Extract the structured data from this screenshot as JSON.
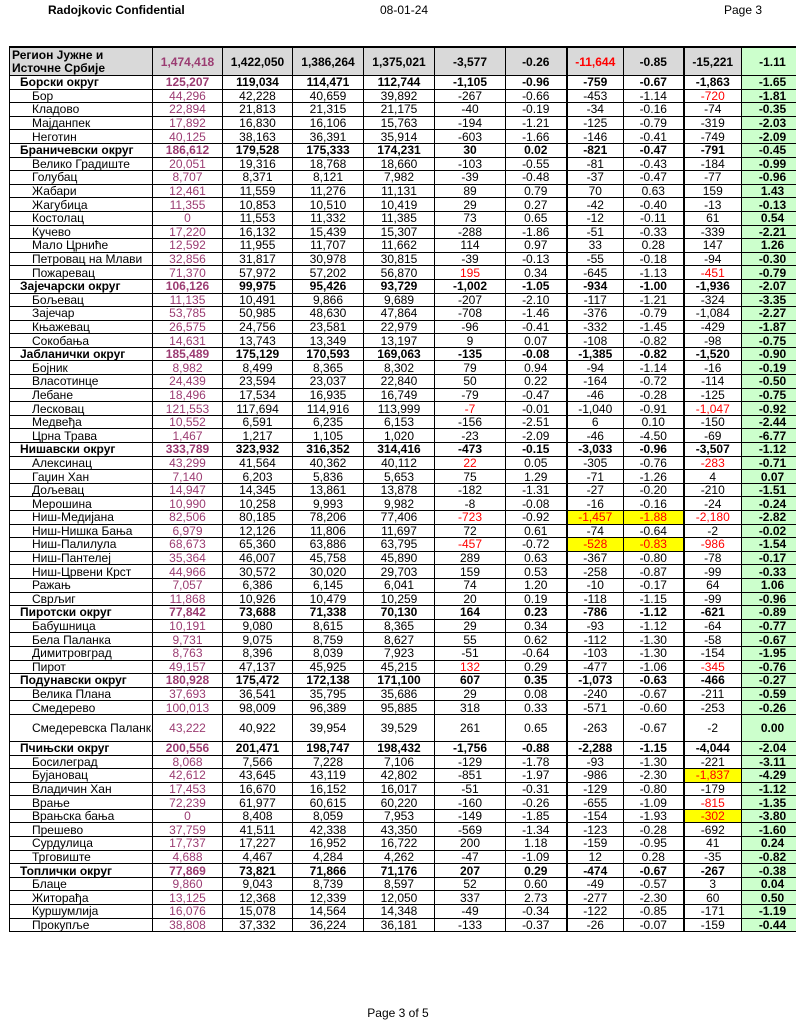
{
  "header": {
    "left": "Radojkovic Confidential",
    "center": "08-01-24",
    "right": "Page 3"
  },
  "footer": "Page 3 of 5",
  "colors": {
    "first_col_text": "#9b3c72",
    "negative_highlight": "#ff0000",
    "highlight_yellow": "#ffff00",
    "last_col_bg": "#ccffcc",
    "header_bg": "#d9d9d9"
  },
  "rows": [
    {
      "name": "Регион Јужне и Источне Србије",
      "level": 0,
      "values": [
        "1,474,418",
        "1,422,050",
        "1,386,264",
        "1,375,021",
        "-3,577",
        "-0.26",
        "-11,644",
        "-0.85",
        "-15,221",
        "-1.11"
      ],
      "red": [
        6
      ]
    },
    {
      "name": "Борски округ",
      "level": 1,
      "values": [
        "125,207",
        "119,034",
        "114,471",
        "112,744",
        "-1,105",
        "-0.96",
        "-759",
        "-0.67",
        "-1,863",
        "-1.65"
      ]
    },
    {
      "name": "Бор",
      "level": 2,
      "values": [
        "44,296",
        "42,228",
        "40,659",
        "39,892",
        "-267",
        "-0.66",
        "-453",
        "-1.14",
        "-720",
        "-1.81"
      ],
      "red": [
        8
      ]
    },
    {
      "name": "Кладово",
      "level": 2,
      "values": [
        "22,894",
        "21,813",
        "21,315",
        "21,175",
        "-40",
        "-0.19",
        "-34",
        "-0.16",
        "-74",
        "-0.35"
      ]
    },
    {
      "name": "Мајданпек",
      "level": 2,
      "values": [
        "17,892",
        "16,830",
        "16,106",
        "15,763",
        "-194",
        "-1.21",
        "-125",
        "-0.79",
        "-319",
        "-2.03"
      ]
    },
    {
      "name": "Неготин",
      "level": 2,
      "values": [
        "40,125",
        "38,163",
        "36,391",
        "35,914",
        "-603",
        "-1.66",
        "-146",
        "-0.41",
        "-749",
        "-2.09"
      ]
    },
    {
      "name": "Браничевски округ",
      "level": 1,
      "values": [
        "186,612",
        "179,528",
        "175,333",
        "174,231",
        "30",
        "0.02",
        "-821",
        "-0.47",
        "-791",
        "-0.45"
      ]
    },
    {
      "name": "Велико Градиште",
      "level": 2,
      "values": [
        "20,051",
        "19,316",
        "18,768",
        "18,660",
        "-103",
        "-0.55",
        "-81",
        "-0.43",
        "-184",
        "-0.99"
      ]
    },
    {
      "name": "Голубац",
      "level": 2,
      "values": [
        "8,707",
        "8,371",
        "8,121",
        "7,982",
        "-39",
        "-0.48",
        "-37",
        "-0.47",
        "-77",
        "-0.96"
      ]
    },
    {
      "name": "Жабари",
      "level": 2,
      "values": [
        "12,461",
        "11,559",
        "11,276",
        "11,131",
        "89",
        "0.79",
        "70",
        "0.63",
        "159",
        "1.43"
      ]
    },
    {
      "name": "Жагубица",
      "level": 2,
      "values": [
        "11,355",
        "10,853",
        "10,510",
        "10,419",
        "29",
        "0.27",
        "-42",
        "-0.40",
        "-13",
        "-0.13"
      ]
    },
    {
      "name": "Костолац",
      "level": 2,
      "values": [
        "0",
        "11,553",
        "11,332",
        "11,385",
        "73",
        "0.65",
        "-12",
        "-0.11",
        "61",
        "0.54"
      ]
    },
    {
      "name": "Кучево",
      "level": 2,
      "values": [
        "17,220",
        "16,132",
        "15,439",
        "15,307",
        "-288",
        "-1.86",
        "-51",
        "-0.33",
        "-339",
        "-2.21"
      ]
    },
    {
      "name": "Мало Црниће",
      "level": 2,
      "values": [
        "12,592",
        "11,955",
        "11,707",
        "11,662",
        "114",
        "0.97",
        "33",
        "0.28",
        "147",
        "1.26"
      ]
    },
    {
      "name": "Петровац на Млави",
      "level": 2,
      "values": [
        "32,856",
        "31,817",
        "30,978",
        "30,815",
        "-39",
        "-0.13",
        "-55",
        "-0.18",
        "-94",
        "-0.30"
      ]
    },
    {
      "name": "Пожаревац",
      "level": 2,
      "values": [
        "71,370",
        "57,972",
        "57,202",
        "56,870",
        "195",
        "0.34",
        "-645",
        "-1.13",
        "-451",
        "-0.79"
      ],
      "red": [
        4,
        8
      ]
    },
    {
      "name": "Зајечарски округ",
      "level": 1,
      "values": [
        "106,126",
        "99,975",
        "95,426",
        "93,729",
        "-1,002",
        "-1.05",
        "-934",
        "-1.00",
        "-1,936",
        "-2.07"
      ]
    },
    {
      "name": "Бољевац",
      "level": 2,
      "values": [
        "11,135",
        "10,491",
        "9,866",
        "9,689",
        "-207",
        "-2.10",
        "-117",
        "-1.21",
        "-324",
        "-3.35"
      ]
    },
    {
      "name": "Зајечар",
      "level": 2,
      "values": [
        "53,785",
        "50,985",
        "48,630",
        "47,864",
        "-708",
        "-1.46",
        "-376",
        "-0.79",
        "-1,084",
        "-2.27"
      ]
    },
    {
      "name": "Књажевац",
      "level": 2,
      "values": [
        "26,575",
        "24,756",
        "23,581",
        "22,979",
        "-96",
        "-0.41",
        "-332",
        "-1.45",
        "-429",
        "-1.87"
      ]
    },
    {
      "name": "Сокобања",
      "level": 2,
      "values": [
        "14,631",
        "13,743",
        "13,349",
        "13,197",
        "9",
        "0.07",
        "-108",
        "-0.82",
        "-98",
        "-0.75"
      ]
    },
    {
      "name": "Јабланички округ",
      "level": 1,
      "values": [
        "185,489",
        "175,129",
        "170,593",
        "169,063",
        "-135",
        "-0.08",
        "-1,385",
        "-0.82",
        "-1,520",
        "-0.90"
      ]
    },
    {
      "name": "Бојник",
      "level": 2,
      "values": [
        "8,982",
        "8,499",
        "8,365",
        "8,302",
        "79",
        "0.94",
        "-94",
        "-1.14",
        "-16",
        "-0.19"
      ]
    },
    {
      "name": "Власотинце",
      "level": 2,
      "values": [
        "24,439",
        "23,594",
        "23,037",
        "22,840",
        "50",
        "0.22",
        "-164",
        "-0.72",
        "-114",
        "-0.50"
      ]
    },
    {
      "name": "Лебане",
      "level": 2,
      "values": [
        "18,496",
        "17,534",
        "16,935",
        "16,749",
        "-79",
        "-0.47",
        "-46",
        "-0.28",
        "-125",
        "-0.75"
      ]
    },
    {
      "name": "Лесковац",
      "level": 2,
      "values": [
        "121,553",
        "117,694",
        "114,916",
        "113,999",
        "-7",
        "-0.01",
        "-1,040",
        "-0.91",
        "-1,047",
        "-0.92"
      ],
      "red": [
        4,
        8
      ]
    },
    {
      "name": "Медвеђа",
      "level": 2,
      "values": [
        "10,552",
        "6,591",
        "6,235",
        "6,153",
        "-156",
        "-2.51",
        "6",
        "0.10",
        "-150",
        "-2.44"
      ]
    },
    {
      "name": "Црна Трава",
      "level": 2,
      "values": [
        "1,467",
        "1,217",
        "1,105",
        "1,020",
        "-23",
        "-2.09",
        "-46",
        "-4.50",
        "-69",
        "-6.77"
      ]
    },
    {
      "name": "Нишавски округ",
      "level": 1,
      "values": [
        "333,789",
        "323,932",
        "316,352",
        "314,416",
        "-473",
        "-0.15",
        "-3,033",
        "-0.96",
        "-3,507",
        "-1.12"
      ]
    },
    {
      "name": "Алексинац",
      "level": 2,
      "values": [
        "43,299",
        "41,564",
        "40,362",
        "40,112",
        "22",
        "0.05",
        "-305",
        "-0.76",
        "-283",
        "-0.71"
      ],
      "red": [
        4,
        8
      ]
    },
    {
      "name": "Гаџин Хан",
      "level": 2,
      "values": [
        "7,140",
        "6,203",
        "5,836",
        "5,653",
        "75",
        "1.29",
        "-71",
        "-1.26",
        "4",
        "0.07"
      ]
    },
    {
      "name": "Дољевац",
      "level": 2,
      "values": [
        "14,947",
        "14,345",
        "13,861",
        "13,878",
        "-182",
        "-1.31",
        "-27",
        "-0.20",
        "-210",
        "-1.51"
      ]
    },
    {
      "name": "Мерошина",
      "level": 2,
      "values": [
        "10,990",
        "10,258",
        "9,993",
        "9,982",
        "-8",
        "-0.08",
        "-16",
        "-0.16",
        "-24",
        "-0.24"
      ]
    },
    {
      "name": "Ниш-Медијана",
      "level": 2,
      "values": [
        "82,506",
        "80,185",
        "78,206",
        "77,406",
        "-723",
        "-0.92",
        "-1,457",
        "-1.88",
        "-2,180",
        "-2.82"
      ],
      "red": [
        4,
        6,
        7,
        8
      ],
      "yellow": [
        6,
        7
      ]
    },
    {
      "name": "Ниш-Нишка Бања",
      "level": 2,
      "values": [
        "6,979",
        "12,126",
        "11,806",
        "11,697",
        "72",
        "0.61",
        "-74",
        "-0.64",
        "-2",
        "-0.02"
      ]
    },
    {
      "name": "Ниш-Палилула",
      "level": 2,
      "values": [
        "68,673",
        "65,360",
        "63,886",
        "63,795",
        "-457",
        "-0.72",
        "-528",
        "-0.83",
        "-986",
        "-1.54"
      ],
      "red": [
        4,
        6,
        7,
        8
      ],
      "yellow": [
        6,
        7
      ]
    },
    {
      "name": "Ниш-Пантелеј",
      "level": 2,
      "values": [
        "35,364",
        "46,007",
        "45,758",
        "45,890",
        "289",
        "0.63",
        "-367",
        "-0.80",
        "-78",
        "-0.17"
      ]
    },
    {
      "name": "Ниш-Црвени Крст",
      "level": 2,
      "values": [
        "44,966",
        "30,572",
        "30,020",
        "29,703",
        "159",
        "0.53",
        "-258",
        "-0.87",
        "-99",
        "-0.33"
      ]
    },
    {
      "name": "Ражањ",
      "level": 2,
      "values": [
        "7,057",
        "6,386",
        "6,145",
        "6,041",
        "74",
        "1.20",
        "-10",
        "-0.17",
        "64",
        "1.06"
      ]
    },
    {
      "name": "Сврљиг",
      "level": 2,
      "values": [
        "11,868",
        "10,926",
        "10,479",
        "10,259",
        "20",
        "0.19",
        "-118",
        "-1.15",
        "-99",
        "-0.96"
      ]
    },
    {
      "name": "Пиротски округ",
      "level": 1,
      "values": [
        "77,842",
        "73,688",
        "71,338",
        "70,130",
        "164",
        "0.23",
        "-786",
        "-1.12",
        "-621",
        "-0.89"
      ]
    },
    {
      "name": "Бабушница",
      "level": 2,
      "values": [
        "10,191",
        "9,080",
        "8,615",
        "8,365",
        "29",
        "0.34",
        "-93",
        "-1.12",
        "-64",
        "-0.77"
      ]
    },
    {
      "name": "Бела Паланка",
      "level": 2,
      "values": [
        "9,731",
        "9,075",
        "8,759",
        "8,627",
        "55",
        "0.62",
        "-112",
        "-1.30",
        "-58",
        "-0.67"
      ]
    },
    {
      "name": "Димитровград",
      "level": 2,
      "values": [
        "8,763",
        "8,396",
        "8,039",
        "7,923",
        "-51",
        "-0.64",
        "-103",
        "-1.30",
        "-154",
        "-1.95"
      ]
    },
    {
      "name": "Пирот",
      "level": 2,
      "values": [
        "49,157",
        "47,137",
        "45,925",
        "45,215",
        "132",
        "0.29",
        "-477",
        "-1.06",
        "-345",
        "-0.76"
      ],
      "red": [
        4,
        8
      ]
    },
    {
      "name": "Подунавски округ",
      "level": 1,
      "values": [
        "180,928",
        "175,472",
        "172,138",
        "171,100",
        "607",
        "0.35",
        "-1,073",
        "-0.63",
        "-466",
        "-0.27"
      ]
    },
    {
      "name": "Велика Плана",
      "level": 2,
      "values": [
        "37,693",
        "36,541",
        "35,795",
        "35,686",
        "29",
        "0.08",
        "-240",
        "-0.67",
        "-211",
        "-0.59"
      ]
    },
    {
      "name": "Смедерево",
      "level": 2,
      "values": [
        "100,013",
        "98,009",
        "96,389",
        "95,885",
        "318",
        "0.33",
        "-571",
        "-0.60",
        "-253",
        "-0.26"
      ]
    },
    {
      "name": "Смедеревска Паланка",
      "level": 2,
      "tall": true,
      "values": [
        "43,222",
        "40,922",
        "39,954",
        "39,529",
        "261",
        "0.65",
        "-263",
        "-0.67",
        "-2",
        "0.00"
      ]
    },
    {
      "name": "Пчињски округ",
      "level": 1,
      "values": [
        "200,556",
        "201,471",
        "198,747",
        "198,432",
        "-1,756",
        "-0.88",
        "-2,288",
        "-1.15",
        "-4,044",
        "-2.04"
      ]
    },
    {
      "name": "Босилеград",
      "level": 2,
      "values": [
        "8,068",
        "7,566",
        "7,228",
        "7,106",
        "-129",
        "-1.78",
        "-93",
        "-1.30",
        "-221",
        "-3.11"
      ]
    },
    {
      "name": "Бујановац",
      "level": 2,
      "values": [
        "42,612",
        "43,645",
        "43,119",
        "42,802",
        "-851",
        "-1.97",
        "-986",
        "-2.30",
        "-1,837",
        "-4.29"
      ],
      "red": [
        8
      ],
      "yellow": [
        8
      ]
    },
    {
      "name": "Владичин Хан",
      "level": 2,
      "values": [
        "17,453",
        "16,670",
        "16,152",
        "16,017",
        "-51",
        "-0.31",
        "-129",
        "-0.80",
        "-179",
        "-1.12"
      ]
    },
    {
      "name": "Врање",
      "level": 2,
      "values": [
        "72,239",
        "61,977",
        "60,615",
        "60,220",
        "-160",
        "-0.26",
        "-655",
        "-1.09",
        "-815",
        "-1.35"
      ],
      "red": [
        8
      ]
    },
    {
      "name": "Врањска бања",
      "level": 2,
      "values": [
        "0",
        "8,408",
        "8,059",
        "7,953",
        "-149",
        "-1.85",
        "-154",
        "-1.93",
        "-302",
        "-3.80"
      ],
      "red": [
        8
      ],
      "yellow": [
        8
      ]
    },
    {
      "name": "Прешево",
      "level": 2,
      "values": [
        "37,759",
        "41,511",
        "42,338",
        "43,350",
        "-569",
        "-1.34",
        "-123",
        "-0.28",
        "-692",
        "-1.60"
      ]
    },
    {
      "name": "Сурдулица",
      "level": 2,
      "values": [
        "17,737",
        "17,227",
        "16,952",
        "16,722",
        "200",
        "1.18",
        "-159",
        "-0.95",
        "41",
        "0.24"
      ]
    },
    {
      "name": "Трговиште",
      "level": 2,
      "values": [
        "4,688",
        "4,467",
        "4,284",
        "4,262",
        "-47",
        "-1.09",
        "12",
        "0.28",
        "-35",
        "-0.82"
      ]
    },
    {
      "name": "Топлички округ",
      "level": 1,
      "values": [
        "77,869",
        "73,821",
        "71,866",
        "71,176",
        "207",
        "0.29",
        "-474",
        "-0.67",
        "-267",
        "-0.38"
      ]
    },
    {
      "name": "Блаце",
      "level": 2,
      "values": [
        "9,860",
        "9,043",
        "8,739",
        "8,597",
        "52",
        "0.60",
        "-49",
        "-0.57",
        "3",
        "0.04"
      ]
    },
    {
      "name": "Житорађа",
      "level": 2,
      "values": [
        "13,125",
        "12,368",
        "12,339",
        "12,050",
        "337",
        "2.73",
        "-277",
        "-2.30",
        "60",
        "0.50"
      ]
    },
    {
      "name": "Куршумлија",
      "level": 2,
      "values": [
        "16,076",
        "15,078",
        "14,564",
        "14,348",
        "-49",
        "-0.34",
        "-122",
        "-0.85",
        "-171",
        "-1.19"
      ]
    },
    {
      "name": "Прокупље",
      "level": 2,
      "values": [
        "38,808",
        "37,332",
        "36,224",
        "36,181",
        "-133",
        "-0.37",
        "-26",
        "-0.07",
        "-159",
        "-0.44"
      ]
    }
  ]
}
